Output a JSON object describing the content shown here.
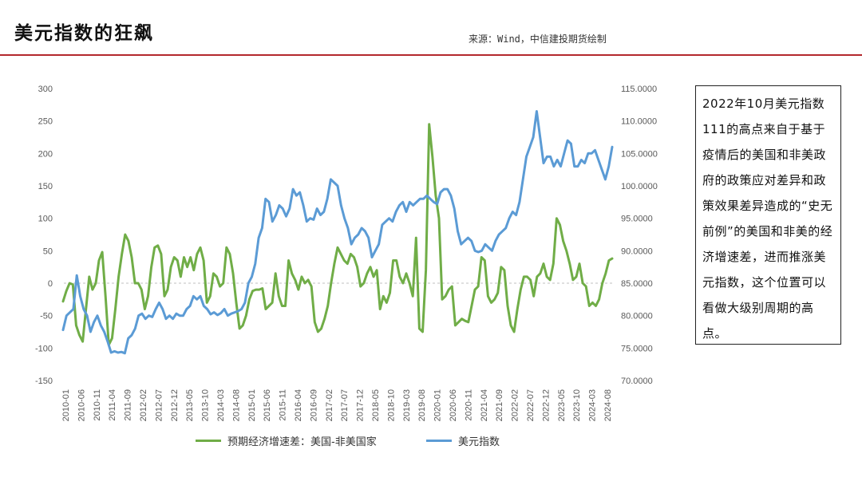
{
  "header": {
    "title": "美元指数的狂飙",
    "source": "来源：Wind，中信建投期货绘制"
  },
  "note": "2022年10月美元指数111的高点来自于基于疫情后的美国和非美政府的政策应对差异和政策效果差异造成的“史无前例”的美国和非美的经济增速差，进而推涨美元指数，这个位置可以看做大级别周期的高点。",
  "colors": {
    "green": "#70ad47",
    "blue": "#5b9bd5",
    "rule": "#b3282d"
  },
  "chart_data": {
    "type": "line",
    "x_tick_labels": [
      "2010-01",
      "2010-06",
      "2010-11",
      "2011-04",
      "2011-09",
      "2012-02",
      "2012-07",
      "2012-12",
      "2013-05",
      "2013-10",
      "2014-03",
      "2014-08",
      "2015-01",
      "2015-06",
      "2015-11",
      "2016-04",
      "2016-09",
      "2017-02",
      "2017-07",
      "2017-12",
      "2018-05",
      "2018-10",
      "2019-03",
      "2019-08",
      "2020-01",
      "2020-06",
      "2020-11",
      "2021-04",
      "2021-09",
      "2022-02",
      "2022-07",
      "2022-12",
      "2023-05",
      "2023-10",
      "2024-03",
      "2024-08"
    ],
    "y_left": {
      "ticks": [
        "300",
        "250",
        "200",
        "150",
        "100",
        "50",
        "0",
        "-50",
        "-100",
        "-150"
      ],
      "min": -150,
      "max": 300
    },
    "y_right": {
      "ticks": [
        "115.0000",
        "110.0000",
        "105.0000",
        "100.0000",
        "95.0000",
        "90.0000",
        "85.0000",
        "80.0000",
        "75.0000",
        "70.0000"
      ],
      "min": 70,
      "max": 115
    },
    "series": [
      {
        "name": "预期经济增速差：美国-非美国家",
        "axis": "left",
        "color": "#70ad47",
        "values": [
          -28,
          -12,
          0,
          -2,
          -65,
          -80,
          -90,
          -40,
          10,
          -10,
          0,
          35,
          48,
          -20,
          -95,
          -85,
          -40,
          10,
          45,
          75,
          65,
          40,
          0,
          0,
          -10,
          -40,
          -20,
          25,
          55,
          58,
          45,
          -20,
          -10,
          25,
          40,
          35,
          10,
          40,
          25,
          40,
          20,
          45,
          55,
          35,
          -30,
          -20,
          15,
          10,
          -5,
          0,
          55,
          45,
          15,
          -30,
          -70,
          -65,
          -50,
          -25,
          -12,
          -10,
          -10,
          -8,
          -40,
          -35,
          -30,
          15,
          -20,
          -35,
          -35,
          35,
          15,
          5,
          -10,
          10,
          0,
          5,
          -5,
          -60,
          -75,
          -70,
          -55,
          -35,
          0,
          30,
          55,
          45,
          35,
          30,
          45,
          40,
          25,
          -5,
          0,
          15,
          25,
          10,
          20,
          -40,
          -20,
          -30,
          -15,
          35,
          35,
          10,
          0,
          15,
          0,
          -20,
          70,
          -70,
          -75,
          20,
          245,
          195,
          135,
          100,
          -25,
          -20,
          -10,
          -5,
          -65,
          -60,
          -55,
          -58,
          -60,
          -35,
          -10,
          -5,
          40,
          35,
          -20,
          -30,
          -25,
          -15,
          25,
          20,
          -35,
          -65,
          -75,
          -40,
          -10,
          10,
          10,
          5,
          -20,
          10,
          15,
          30,
          10,
          5,
          30,
          100,
          90,
          65,
          50,
          30,
          5,
          10,
          30,
          0,
          -5,
          -35,
          -30,
          -35,
          -25,
          0,
          15,
          35,
          38
        ]
      },
      {
        "name": "美元指数",
        "axis": "right",
        "color": "#5b9bd5",
        "values": [
          77.8,
          80,
          80.5,
          81,
          86.2,
          83,
          81,
          80,
          77.5,
          79,
          80,
          78.5,
          77.5,
          76,
          74.3,
          74.5,
          74.3,
          74.4,
          74.2,
          76.5,
          77,
          78,
          80,
          80.3,
          79.5,
          80,
          79.8,
          81,
          82,
          81,
          79.5,
          80,
          79.5,
          80.3,
          80,
          80,
          81,
          81.5,
          83,
          82.5,
          83,
          81.5,
          81,
          80.2,
          80.5,
          80.1,
          80.4,
          81,
          80,
          80.3,
          80.5,
          80.7,
          81,
          82,
          85,
          86,
          88,
          92,
          93.5,
          98,
          97.5,
          94.5,
          95.5,
          97,
          96.5,
          95.3,
          96.5,
          99.5,
          98.5,
          99,
          97,
          94.5,
          95,
          94.8,
          96.5,
          95.5,
          96,
          98,
          101,
          100.5,
          100,
          97,
          95,
          93.5,
          91,
          92,
          92.5,
          93.5,
          93,
          92,
          89,
          90,
          91,
          94,
          94.5,
          95,
          94.5,
          96,
          97,
          97.5,
          96,
          97.5,
          97,
          97.5,
          98,
          98,
          98.5,
          98,
          97.5,
          97.2,
          99,
          99.5,
          99.5,
          98.5,
          96.5,
          93,
          91,
          91.5,
          92,
          91.5,
          90,
          89.8,
          90,
          91,
          90.5,
          90,
          91.5,
          92.5,
          93,
          93.5,
          95,
          96,
          95.5,
          97.5,
          101,
          104.5,
          106,
          107.5,
          111.5,
          107.5,
          103.5,
          104.5,
          104.5,
          103,
          104,
          103,
          105,
          107,
          106.5,
          103,
          103,
          104,
          103.5,
          105,
          105,
          105.5,
          104,
          102.5,
          101,
          103,
          106
        ]
      }
    ]
  },
  "legend": {
    "green": "预期经济增速差：美国-非美国家",
    "blue": "美元指数"
  }
}
